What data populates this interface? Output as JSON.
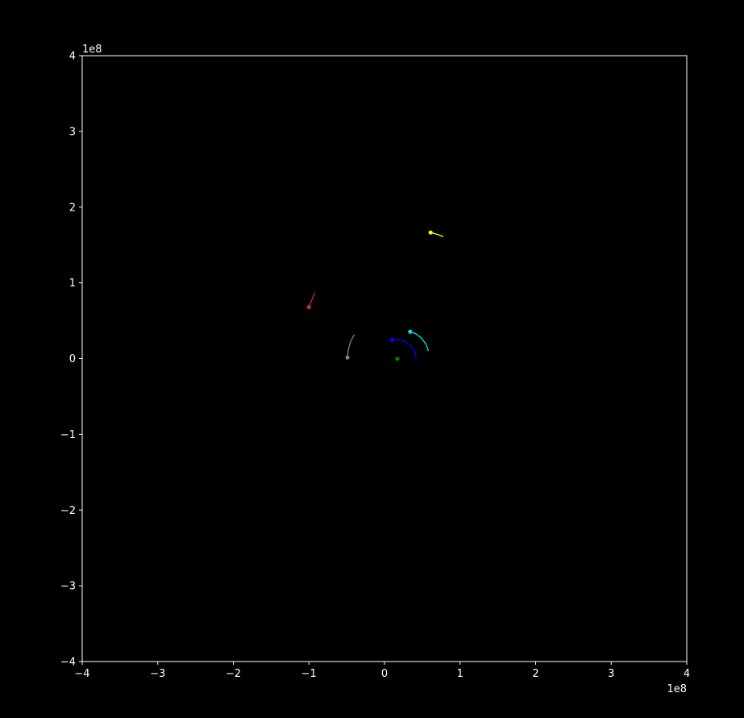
{
  "chart_data": {
    "type": "line",
    "title": "",
    "xlabel": "",
    "ylabel": "",
    "xlim": [
      -400000000,
      400000000
    ],
    "ylim": [
      -400000000,
      400000000
    ],
    "x_ticks": [
      -400000000,
      -300000000,
      -200000000,
      -100000000,
      0,
      100000000,
      200000000,
      300000000,
      400000000
    ],
    "y_ticks": [
      -400000000,
      -300000000,
      -200000000,
      -100000000,
      0,
      100000000,
      200000000,
      300000000,
      400000000
    ],
    "x_tick_labels": [
      "−4",
      "−3",
      "−2",
      "−1",
      "0",
      "1",
      "2",
      "3",
      "4"
    ],
    "y_tick_labels": [
      "−4",
      "−3",
      "−2",
      "−1",
      "0",
      "1",
      "2",
      "3",
      "4"
    ],
    "x_offset_label": "1e8",
    "y_offset_label": "1e8",
    "grid": false,
    "legend": "none",
    "colors": {
      "background": "#000000",
      "axes": "#ffffff",
      "text": "#ffffff"
    },
    "series": [
      {
        "color": "#ffff00",
        "points": [
          [
            78000000,
            161000000
          ],
          [
            70000000,
            164000000
          ],
          [
            61000000,
            166500000
          ]
        ]
      },
      {
        "color": "#c03030",
        "points": [
          [
            -92000000,
            87000000
          ],
          [
            -96000000,
            78000000
          ],
          [
            -100000000,
            68000000
          ]
        ]
      },
      {
        "color": "#808080",
        "points": [
          [
            -40000000,
            32000000
          ],
          [
            -45000000,
            22000000
          ],
          [
            -48000000,
            11000000
          ],
          [
            -49000000,
            1500000
          ]
        ]
      },
      {
        "color": "#00e5e5",
        "points": [
          [
            58000000,
            10000000
          ],
          [
            55000000,
            19000000
          ],
          [
            49000000,
            27000000
          ],
          [
            41000000,
            33000000
          ],
          [
            34000000,
            35500000
          ]
        ]
      },
      {
        "color": "#0000ff",
        "points": [
          [
            42000000,
            0
          ],
          [
            40000000,
            10000000
          ],
          [
            34000000,
            18000000
          ],
          [
            24000000,
            24000000
          ],
          [
            16000000,
            25500000
          ],
          [
            10000000,
            24500000
          ]
        ]
      },
      {
        "color": "#008000",
        "points": [
          [
            17000000,
            -200000
          ]
        ]
      }
    ]
  }
}
